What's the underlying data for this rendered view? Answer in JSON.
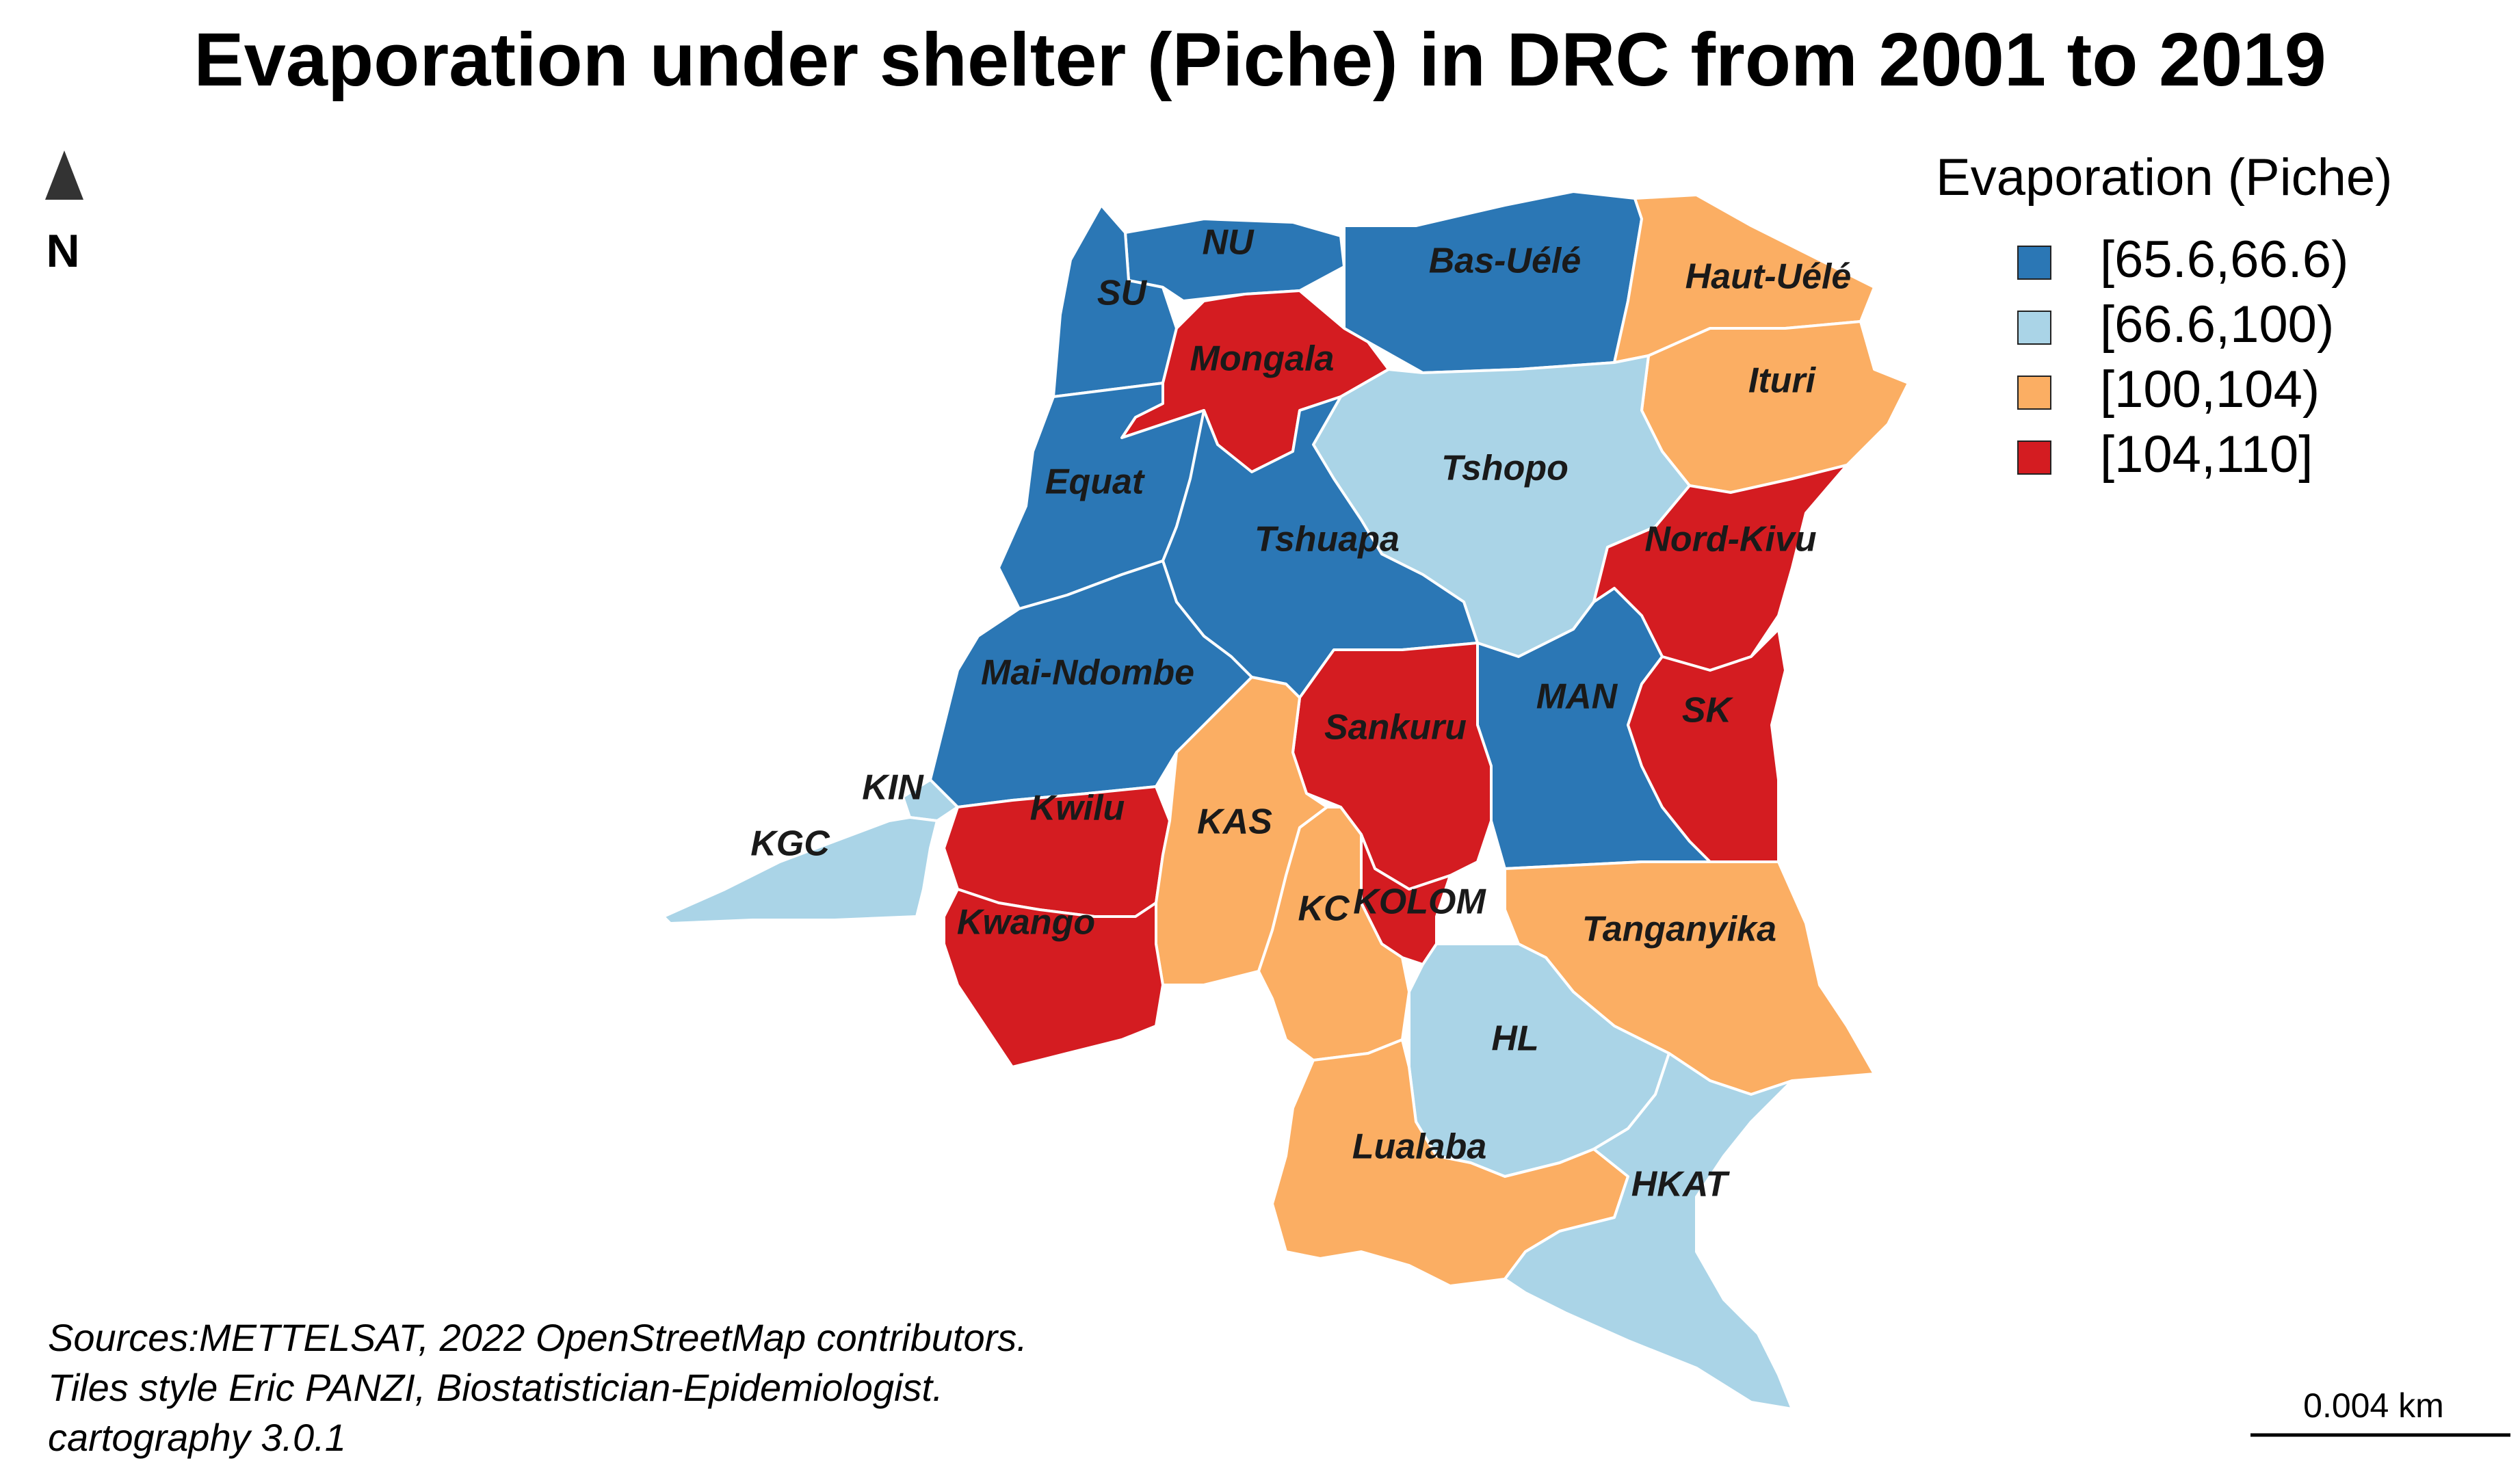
{
  "title": "Evaporation under shelter (Piche) in DRC from 2001 to 2019",
  "north_label": "N",
  "legend": {
    "title": "Evaporation (Piche)",
    "classes": [
      {
        "label": "[65.6,66.6)",
        "color": "#2b77b5"
      },
      {
        "label": "[66.6,100)",
        "color": "#aad4e7"
      },
      {
        "label": "[100,104)",
        "color": "#fbae63"
      },
      {
        "label": "[104,110]",
        "color": "#d41c21"
      }
    ]
  },
  "provinces": [
    {
      "name": "NU",
      "class": 0
    },
    {
      "name": "SU",
      "class": 0
    },
    {
      "name": "Bas-Uélé",
      "class": 0
    },
    {
      "name": "Haut-Uélé",
      "class": 2
    },
    {
      "name": "Mongala",
      "class": 3
    },
    {
      "name": "Ituri",
      "class": 2
    },
    {
      "name": "Equat",
      "class": 0
    },
    {
      "name": "Tshopo",
      "class": 1
    },
    {
      "name": "Tshuapa",
      "class": 0
    },
    {
      "name": "Nord-Kivu",
      "class": 3
    },
    {
      "name": "Mai-Ndombe",
      "class": 0
    },
    {
      "name": "MAN",
      "class": 0
    },
    {
      "name": "SK",
      "class": 3
    },
    {
      "name": "Sankuru",
      "class": 3
    },
    {
      "name": "KIN",
      "class": 1
    },
    {
      "name": "Kwilu",
      "class": 3
    },
    {
      "name": "KAS",
      "class": 2
    },
    {
      "name": "KGC",
      "class": 1
    },
    {
      "name": "KOLOM",
      "class": 3
    },
    {
      "name": "KC",
      "class": 2
    },
    {
      "name": "Kwango",
      "class": 3
    },
    {
      "name": "Tanganyika",
      "class": 2
    },
    {
      "name": "HL",
      "class": 1
    },
    {
      "name": "Lualaba",
      "class": 2
    },
    {
      "name": "HKAT",
      "class": 1
    }
  ],
  "sources": [
    "Sources:METTELSAT, 2022 OpenStreetMap contributors.",
    "Tiles style Eric PANZI, Biostatistician-Epidemiologist.",
    "cartography 3.0.1"
  ],
  "scale_bar_label": "0.004 km"
}
